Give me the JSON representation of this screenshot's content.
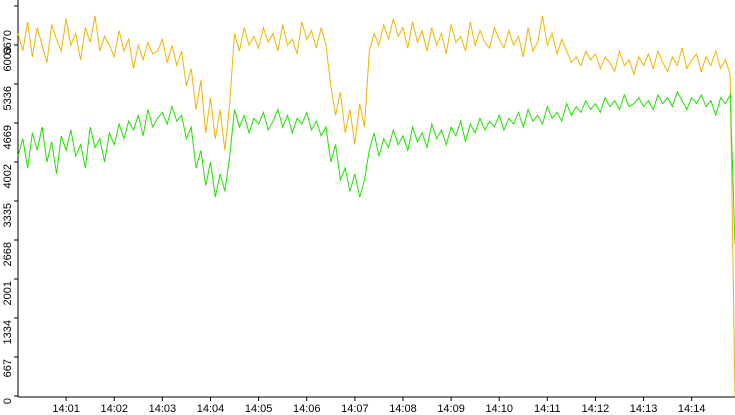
{
  "chart_data": {
    "type": "line",
    "categories": [
      null,
      null,
      null,
      null,
      null,
      null,
      null,
      null,
      null,
      null,
      "14:01",
      null,
      null,
      null,
      null,
      null,
      null,
      null,
      null,
      null,
      "14:02",
      null,
      null,
      null,
      null,
      null,
      null,
      null,
      null,
      null,
      "14:03",
      null,
      null,
      null,
      null,
      null,
      null,
      null,
      null,
      null,
      "14:04",
      null,
      null,
      null,
      null,
      null,
      null,
      null,
      null,
      null,
      "14:05",
      null,
      null,
      null,
      null,
      null,
      null,
      null,
      null,
      null,
      "14:06",
      null,
      null,
      null,
      null,
      null,
      null,
      null,
      null,
      null,
      "14:07",
      null,
      null,
      null,
      null,
      null,
      null,
      null,
      null,
      null,
      "14:08",
      null,
      null,
      null,
      null,
      null,
      null,
      null,
      null,
      null,
      "14:09",
      null,
      null,
      null,
      null,
      null,
      null,
      null,
      null,
      null,
      "14:10",
      null,
      null,
      null,
      null,
      null,
      null,
      null,
      null,
      null,
      "14:11",
      null,
      null,
      null,
      null,
      null,
      null,
      null,
      null,
      null,
      "14:12",
      null,
      null,
      null,
      null,
      null,
      null,
      null,
      null,
      null,
      "14:13",
      null,
      null,
      null,
      null,
      null,
      null,
      null,
      null,
      null,
      "14:14",
      null,
      null,
      null,
      null,
      null,
      null,
      null,
      null,
      null
    ],
    "ylim": [
      0,
      6670
    ],
    "yticks": [
      0,
      667,
      1334,
      2001,
      2668,
      3335,
      4002,
      4669,
      5336,
      6003,
      6670
    ],
    "grid": false,
    "series": [
      {
        "color": "#f0b400",
        "values": [
          6200,
          5900,
          6400,
          5800,
          6300,
          6000,
          5700,
          6350,
          6100,
          5900,
          6450,
          6000,
          6200,
          5750,
          6300,
          6050,
          6500,
          5900,
          6150,
          6000,
          5800,
          6250,
          5900,
          6100,
          5600,
          6000,
          5750,
          6050,
          5850,
          5900,
          6100,
          5700,
          6000,
          5650,
          5900,
          5300,
          5600,
          4900,
          5400,
          4500,
          5100,
          4400,
          4900,
          4200,
          5000,
          6200,
          5900,
          6300,
          6000,
          6150,
          5950,
          6300,
          6050,
          6200,
          5900,
          6350,
          6000,
          6100,
          5850,
          6400,
          6100,
          6250,
          5950,
          6300,
          6000,
          5300,
          4800,
          5200,
          4500,
          4900,
          4300,
          5000,
          4600,
          5900,
          6200,
          6000,
          6350,
          6100,
          6450,
          6150,
          6300,
          5950,
          6400,
          6050,
          6250,
          5900,
          6300,
          6000,
          6200,
          5850,
          6350,
          6050,
          6150,
          5900,
          6400,
          6000,
          6250,
          6050,
          5950,
          6300,
          6100,
          5950,
          6250,
          6000,
          6150,
          5800,
          6300,
          5900,
          6050,
          6500,
          6000,
          6200,
          5850,
          6100,
          5900,
          5700,
          5800,
          5650,
          5900,
          5750,
          5850,
          5600,
          5800,
          5700,
          5550,
          5900,
          5650,
          5750,
          5500,
          5800,
          5650,
          5850,
          5600,
          5900,
          5700,
          5550,
          5800,
          5650,
          5950,
          5600,
          5750,
          5850,
          5550,
          5800,
          5650,
          5900,
          5600,
          5750,
          5500,
          0
        ]
      },
      {
        "color": "#22e000",
        "values": [
          4100,
          4400,
          3900,
          4500,
          4200,
          4600,
          4000,
          4350,
          3800,
          4450,
          4200,
          4550,
          4100,
          4300,
          3900,
          4600,
          4250,
          4400,
          4000,
          4500,
          4300,
          4650,
          4400,
          4700,
          4550,
          4800,
          4450,
          4900,
          4600,
          4750,
          4850,
          4650,
          4950,
          4700,
          4800,
          4400,
          4600,
          3900,
          4200,
          3600,
          4000,
          3400,
          3800,
          3500,
          4100,
          4900,
          4600,
          4800,
          4500,
          4750,
          4650,
          4850,
          4550,
          4700,
          4900,
          4600,
          4800,
          4500,
          4750,
          4650,
          4850,
          4550,
          4700,
          4450,
          4600,
          4000,
          4300,
          3700,
          3900,
          3500,
          3800,
          3400,
          3700,
          4200,
          4500,
          4100,
          4400,
          4250,
          4550,
          4300,
          4450,
          4200,
          4600,
          4350,
          4500,
          4250,
          4650,
          4400,
          4550,
          4300,
          4600,
          4450,
          4700,
          4350,
          4650,
          4500,
          4750,
          4550,
          4700,
          4600,
          4800,
          4550,
          4750,
          4650,
          4850,
          4600,
          4900,
          4700,
          4800,
          4650,
          4950,
          4750,
          4850,
          4700,
          5000,
          4800,
          4950,
          4850,
          5050,
          4900,
          5000,
          4850,
          5100,
          4950,
          5050,
          4900,
          5150,
          4950,
          5000,
          5100,
          4950,
          5050,
          4900,
          5150,
          5000,
          5100,
          4950,
          5200,
          5050,
          4900,
          5100,
          5000,
          5150,
          4950,
          5050,
          4800,
          5100,
          5000,
          5150,
          2600
        ]
      }
    ]
  }
}
